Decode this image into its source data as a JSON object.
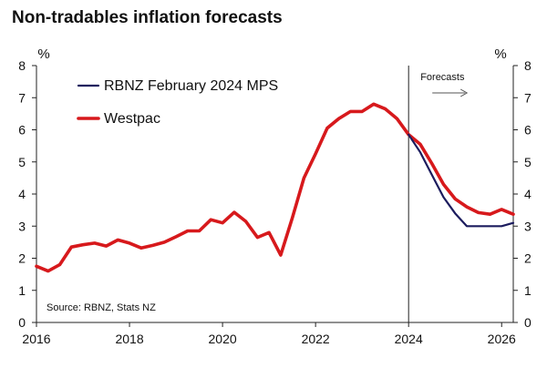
{
  "chart_data": {
    "type": "line",
    "title": "Non-tradables inflation forecasts",
    "y_unit": "%",
    "ylim": [
      0,
      8
    ],
    "yticks": [
      0,
      1,
      2,
      3,
      4,
      5,
      6,
      7,
      8
    ],
    "xlim": [
      2016,
      2026.25
    ],
    "xticks": [
      "2016",
      "2018",
      "2020",
      "2022",
      "2024",
      "2026"
    ],
    "grid": false,
    "legend_position": "top-left",
    "forecast_marker": {
      "x": 2024.0,
      "label": "Forecasts"
    },
    "source": "Source: RBNZ, Stats NZ",
    "series": [
      {
        "name": "RBNZ February 2024 MPS",
        "color": "#1c1c5e",
        "points": [
          [
            2024.0,
            5.85
          ],
          [
            2024.25,
            5.3
          ],
          [
            2024.5,
            4.6
          ],
          [
            2024.75,
            3.9
          ],
          [
            2025.0,
            3.4
          ],
          [
            2025.25,
            3.0
          ],
          [
            2025.5,
            3.0
          ],
          [
            2025.75,
            3.0
          ],
          [
            2026.0,
            3.0
          ],
          [
            2026.25,
            3.1
          ]
        ]
      },
      {
        "name": "Westpac",
        "color": "#d7191c",
        "points": [
          [
            2016.0,
            1.75
          ],
          [
            2016.25,
            1.6
          ],
          [
            2016.5,
            1.8
          ],
          [
            2016.75,
            2.35
          ],
          [
            2017.0,
            2.42
          ],
          [
            2017.25,
            2.47
          ],
          [
            2017.5,
            2.38
          ],
          [
            2017.75,
            2.57
          ],
          [
            2018.0,
            2.47
          ],
          [
            2018.25,
            2.32
          ],
          [
            2018.5,
            2.4
          ],
          [
            2018.75,
            2.5
          ],
          [
            2019.0,
            2.67
          ],
          [
            2019.25,
            2.85
          ],
          [
            2019.5,
            2.85
          ],
          [
            2019.75,
            3.2
          ],
          [
            2020.0,
            3.1
          ],
          [
            2020.25,
            3.43
          ],
          [
            2020.5,
            3.15
          ],
          [
            2020.75,
            2.65
          ],
          [
            2021.0,
            2.8
          ],
          [
            2021.25,
            2.1
          ],
          [
            2021.5,
            3.25
          ],
          [
            2021.75,
            4.5
          ],
          [
            2022.0,
            5.25
          ],
          [
            2022.25,
            6.05
          ],
          [
            2022.5,
            6.35
          ],
          [
            2022.75,
            6.57
          ],
          [
            2023.0,
            6.57
          ],
          [
            2023.25,
            6.8
          ],
          [
            2023.5,
            6.65
          ],
          [
            2023.75,
            6.35
          ],
          [
            2024.0,
            5.85
          ],
          [
            2024.25,
            5.55
          ],
          [
            2024.5,
            4.95
          ],
          [
            2024.75,
            4.3
          ],
          [
            2025.0,
            3.85
          ],
          [
            2025.25,
            3.6
          ],
          [
            2025.5,
            3.42
          ],
          [
            2025.75,
            3.37
          ],
          [
            2026.0,
            3.52
          ],
          [
            2026.25,
            3.37
          ]
        ]
      }
    ]
  }
}
